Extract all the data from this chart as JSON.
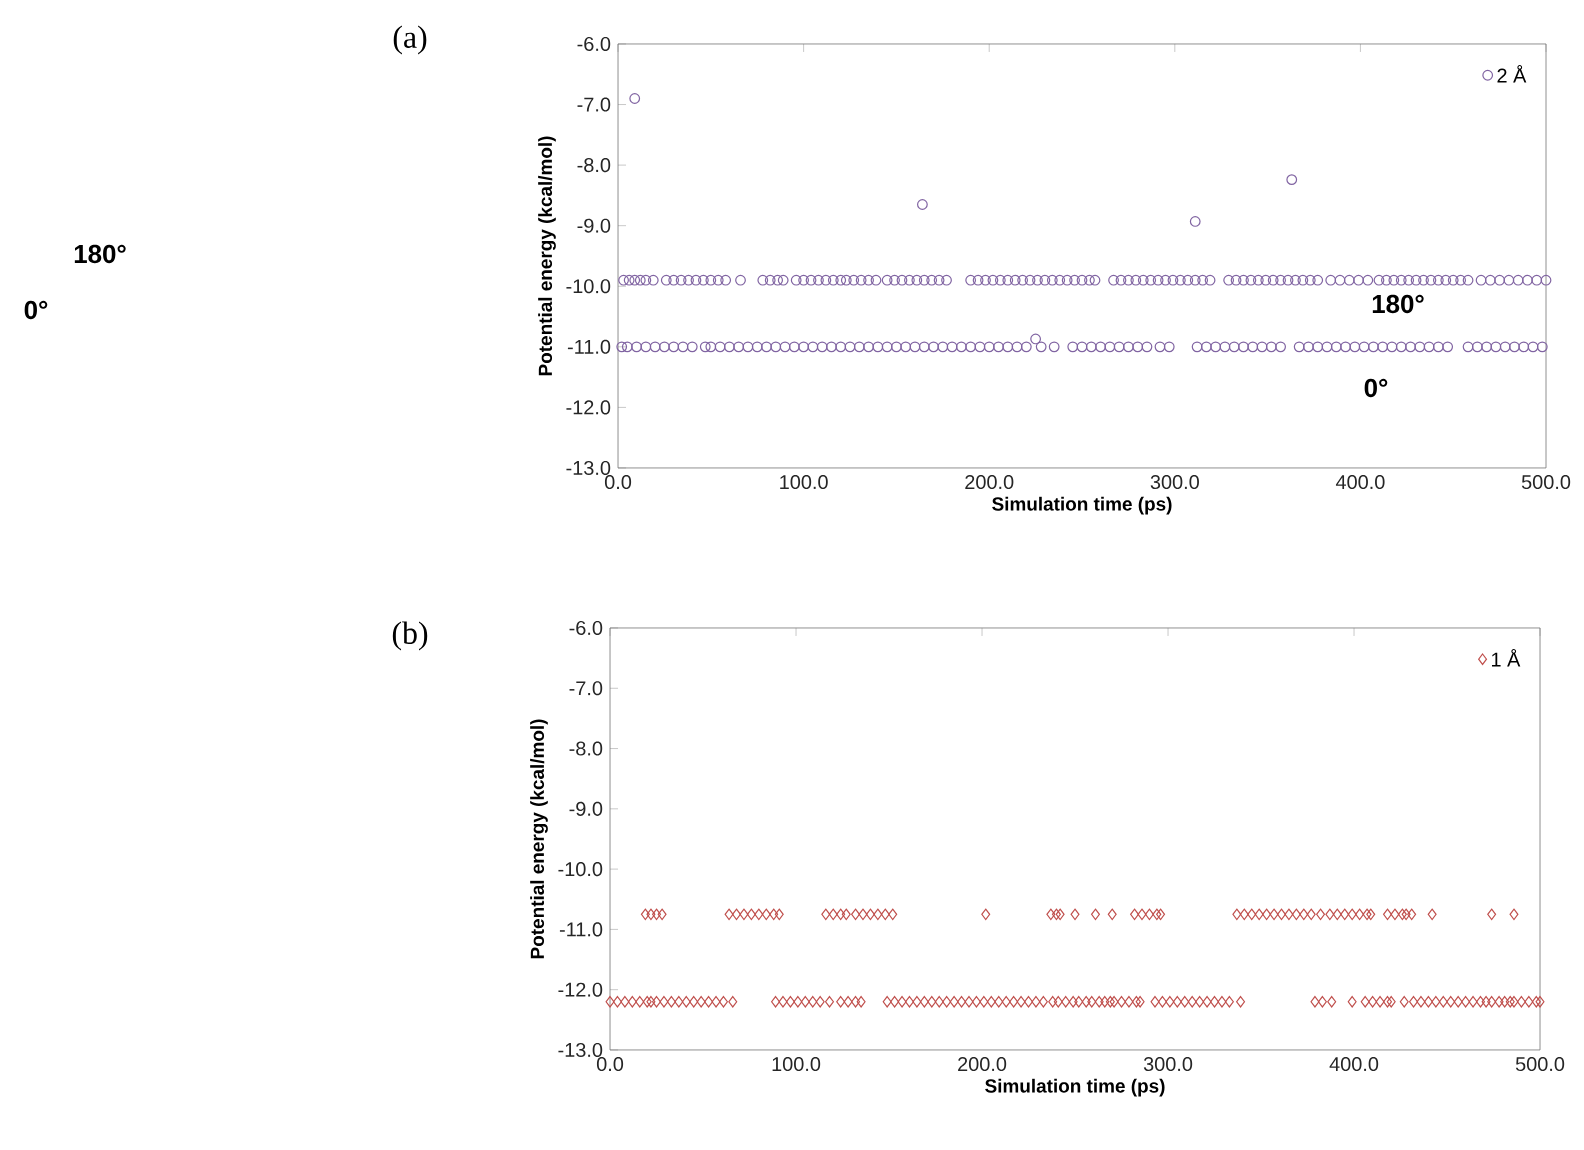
{
  "chart_data": [
    {
      "type": "scatter",
      "title": "(a)",
      "xlabel": "Simulation time (ps)",
      "ylabel": "Potential energy (kcal/mol)",
      "annotations": [
        "180°",
        "0°",
        "180°",
        "0°"
      ],
      "xlim": [
        0,
        500
      ],
      "ylim": [
        -13,
        -6
      ],
      "xticks": [
        {
          "value": 0,
          "label": "0.0"
        },
        {
          "value": 100,
          "label": "100.0"
        },
        {
          "value": 200,
          "label": "200.0"
        },
        {
          "value": 300,
          "label": "300.0"
        },
        {
          "value": 400,
          "label": "400.0"
        },
        {
          "value": 500,
          "label": "500.0"
        }
      ],
      "yticks": [
        {
          "value": -13,
          "label": "-13.0"
        },
        {
          "value": -12,
          "label": "-12.0"
        },
        {
          "value": -11,
          "label": "-11.0"
        },
        {
          "value": -10,
          "label": "-10.0"
        },
        {
          "value": -9,
          "label": "-9.0"
        },
        {
          "value": -8,
          "label": "-8.0"
        },
        {
          "value": -7,
          "label": "-7.0"
        },
        {
          "value": -6,
          "label": "-6.0"
        }
      ],
      "marker": "circle",
      "legend": "top right",
      "grid": false,
      "series": [
        {
          "name": "2 Å",
          "color": "#8064a2",
          "x": [
            9,
            164,
            225,
            311,
            363
          ],
          "values": [
            -6.9,
            -8.65,
            -10.87,
            -8.93,
            -8.24
          ]
        },
        {
          "color": "#8064a2",
          "x": [
            3,
            6,
            9,
            12,
            15,
            19,
            26,
            30,
            34,
            38,
            42,
            46,
            50,
            54,
            58,
            66,
            78,
            82,
            86,
            89,
            96,
            100,
            104,
            108,
            112,
            116,
            120,
            123,
            127,
            131,
            135,
            139,
            145,
            149,
            153,
            157,
            161,
            165,
            169,
            173,
            177,
            190,
            194,
            198,
            202,
            206,
            210,
            214,
            218,
            222,
            226,
            230,
            234,
            238,
            242,
            246,
            250,
            254,
            257,
            267,
            271,
            275,
            279,
            283,
            287,
            291,
            295,
            299,
            303,
            307,
            311,
            315,
            319,
            329,
            333,
            337,
            341,
            345,
            349,
            353,
            357,
            361,
            365,
            369,
            373,
            377,
            384,
            389,
            394,
            399,
            404,
            410,
            414,
            418,
            422,
            426,
            430,
            434,
            438,
            442,
            446,
            450,
            454,
            458,
            465,
            470,
            475,
            480,
            485,
            490,
            495,
            500
          ],
          "values": [
            -9.9,
            -9.9,
            -9.9,
            -9.9,
            -9.9,
            -9.9,
            -9.9,
            -9.9,
            -9.9,
            -9.9,
            -9.9,
            -9.9,
            -9.9,
            -9.9,
            -9.9,
            -9.9,
            -9.9,
            -9.9,
            -9.9,
            -9.9,
            -9.9,
            -9.9,
            -9.9,
            -9.9,
            -9.9,
            -9.9,
            -9.9,
            -9.9,
            -9.9,
            -9.9,
            -9.9,
            -9.9,
            -9.9,
            -9.9,
            -9.9,
            -9.9,
            -9.9,
            -9.9,
            -9.9,
            -9.9,
            -9.9,
            -9.9,
            -9.9,
            -9.9,
            -9.9,
            -9.9,
            -9.9,
            -9.9,
            -9.9,
            -9.9,
            -9.9,
            -9.9,
            -9.9,
            -9.9,
            -9.9,
            -9.9,
            -9.9,
            -9.9,
            -9.9,
            -9.9,
            -9.9,
            -9.9,
            -9.9,
            -9.9,
            -9.9,
            -9.9,
            -9.9,
            -9.9,
            -9.9,
            -9.9,
            -9.9,
            -9.9,
            -9.9,
            -9.9,
            -9.9,
            -9.9,
            -9.9,
            -9.9,
            -9.9,
            -9.9,
            -9.9,
            -9.9,
            -9.9,
            -9.9,
            -9.9,
            -9.9,
            -9.9,
            -9.9,
            -9.9,
            -9.9,
            -9.9,
            -9.9,
            -9.9,
            -9.9,
            -9.9,
            -9.9,
            -9.9,
            -9.9,
            -9.9,
            -9.9,
            -9.9,
            -9.9,
            -9.9,
            -9.9,
            -9.9,
            -9.9,
            -9.9,
            -9.9,
            -9.9,
            -9.9,
            -9.9,
            -9.9
          ]
        },
        {
          "color": "#8064a2",
          "x": [
            2,
            5,
            10,
            15,
            20,
            25,
            30,
            35,
            40,
            47,
            50,
            55,
            60,
            65,
            70,
            75,
            80,
            85,
            90,
            95,
            100,
            105,
            110,
            115,
            120,
            125,
            130,
            135,
            140,
            145,
            150,
            155,
            160,
            165,
            170,
            175,
            180,
            185,
            190,
            195,
            200,
            205,
            210,
            215,
            220,
            228,
            235,
            245,
            250,
            255,
            260,
            265,
            270,
            275,
            280,
            285,
            292,
            297,
            312,
            317,
            322,
            327,
            332,
            337,
            342,
            347,
            352,
            357,
            367,
            372,
            377,
            382,
            387,
            392,
            397,
            402,
            407,
            412,
            417,
            422,
            427,
            432,
            437,
            442,
            447,
            458,
            463,
            468,
            473,
            478,
            483,
            488,
            493,
            498
          ],
          "values": [
            -11.0,
            -11.0,
            -11.0,
            -11.0,
            -11.0,
            -11.0,
            -11.0,
            -11.0,
            -11.0,
            -11.0,
            -11.0,
            -11.0,
            -11.0,
            -11.0,
            -11.0,
            -11.0,
            -11.0,
            -11.0,
            -11.0,
            -11.0,
            -11.0,
            -11.0,
            -11.0,
            -11.0,
            -11.0,
            -11.0,
            -11.0,
            -11.0,
            -11.0,
            -11.0,
            -11.0,
            -11.0,
            -11.0,
            -11.0,
            -11.0,
            -11.0,
            -11.0,
            -11.0,
            -11.0,
            -11.0,
            -11.0,
            -11.0,
            -11.0,
            -11.0,
            -11.0,
            -11.0,
            -11.0,
            -11.0,
            -11.0,
            -11.0,
            -11.0,
            -11.0,
            -11.0,
            -11.0,
            -11.0,
            -11.0,
            -11.0,
            -11.0,
            -11.0,
            -11.0,
            -11.0,
            -11.0,
            -11.0,
            -11.0,
            -11.0,
            -11.0,
            -11.0,
            -11.0,
            -11.0,
            -11.0,
            -11.0,
            -11.0,
            -11.0,
            -11.0,
            -11.0,
            -11.0,
            -11.0,
            -11.0,
            -11.0,
            -11.0,
            -11.0,
            -11.0,
            -11.0,
            -11.0,
            -11.0,
            -11.0,
            -11.0,
            -11.0,
            -11.0,
            -11.0,
            -11.0,
            -11.0,
            -11.0,
            -11.0
          ]
        }
      ]
    },
    {
      "type": "scatter",
      "title": "(b)",
      "xlabel": "Simulation time (ps)",
      "ylabel": "Potential energy (kcal/mol)",
      "xlim": [
        0,
        500
      ],
      "ylim": [
        -13,
        -6
      ],
      "xticks": [
        {
          "value": 0,
          "label": "0.0"
        },
        {
          "value": 100,
          "label": "100.0"
        },
        {
          "value": 200,
          "label": "200.0"
        },
        {
          "value": 300,
          "label": "300.0"
        },
        {
          "value": 400,
          "label": "400.0"
        },
        {
          "value": 500,
          "label": "500.0"
        }
      ],
      "yticks": [
        {
          "value": -13,
          "label": "-13.0"
        },
        {
          "value": -12,
          "label": "-12.0"
        },
        {
          "value": -11,
          "label": "-11.0"
        },
        {
          "value": -10,
          "label": "-10.0"
        },
        {
          "value": -9,
          "label": "-9.0"
        },
        {
          "value": -8,
          "label": "-8.0"
        },
        {
          "value": -7,
          "label": "-7.0"
        },
        {
          "value": -6,
          "label": "-6.0"
        }
      ],
      "marker": "diamond",
      "legend": "top right",
      "grid": false,
      "series": [
        {
          "name": "1 Å",
          "color": "#c0504d",
          "x": [
            19,
            22,
            25,
            28,
            64,
            68,
            72,
            76,
            80,
            84,
            88,
            91,
            116,
            120,
            124,
            127,
            132,
            136,
            140,
            144,
            148,
            152,
            202,
            237,
            240,
            242,
            250,
            261,
            270,
            282,
            286,
            290,
            294,
            296,
            337,
            341,
            345,
            349,
            353,
            357,
            361,
            365,
            369,
            373,
            377,
            382,
            387,
            391,
            395,
            399,
            403,
            407,
            409,
            418,
            422,
            426,
            428,
            431,
            442,
            474,
            486
          ],
          "values": [
            -10.75,
            -10.75,
            -10.75,
            -10.75,
            -10.75,
            -10.75,
            -10.75,
            -10.75,
            -10.75,
            -10.75,
            -10.75,
            -10.75,
            -10.75,
            -10.75,
            -10.75,
            -10.75,
            -10.75,
            -10.75,
            -10.75,
            -10.75,
            -10.75,
            -10.75,
            -10.75,
            -10.75,
            -10.75,
            -10.75,
            -10.75,
            -10.75,
            -10.75,
            -10.75,
            -10.75,
            -10.75,
            -10.75,
            -10.75,
            -10.75,
            -10.75,
            -10.75,
            -10.75,
            -10.75,
            -10.75,
            -10.75,
            -10.75,
            -10.75,
            -10.75,
            -10.75,
            -10.75,
            -10.75,
            -10.75,
            -10.75,
            -10.75,
            -10.75,
            -10.75,
            -10.75,
            -10.75,
            -10.75,
            -10.75,
            -10.75,
            -10.75,
            -10.75,
            -10.75,
            -10.75
          ]
        },
        {
          "color": "#c0504d",
          "x": [
            0,
            4,
            8,
            12,
            16,
            20,
            22,
            25,
            29,
            33,
            37,
            41,
            45,
            49,
            53,
            57,
            61,
            66,
            89,
            93,
            97,
            101,
            105,
            109,
            113,
            118,
            124,
            128,
            132,
            135,
            149,
            153,
            157,
            161,
            165,
            169,
            173,
            177,
            181,
            185,
            189,
            193,
            197,
            201,
            205,
            209,
            213,
            217,
            221,
            225,
            229,
            233,
            238,
            241,
            245,
            249,
            252,
            256,
            259,
            263,
            266,
            269,
            271,
            275,
            279,
            283,
            285,
            293,
            297,
            301,
            305,
            309,
            313,
            317,
            321,
            325,
            329,
            333,
            339,
            379,
            383,
            388,
            399,
            406,
            410,
            414,
            418,
            420,
            427,
            432,
            436,
            440,
            444,
            448,
            452,
            456,
            460,
            464,
            468,
            471,
            474,
            478,
            481,
            484,
            486,
            490,
            494,
            498,
            500
          ],
          "values": [
            -12.2,
            -12.2,
            -12.2,
            -12.2,
            -12.2,
            -12.2,
            -12.2,
            -12.2,
            -12.2,
            -12.2,
            -12.2,
            -12.2,
            -12.2,
            -12.2,
            -12.2,
            -12.2,
            -12.2,
            -12.2,
            -12.2,
            -12.2,
            -12.2,
            -12.2,
            -12.2,
            -12.2,
            -12.2,
            -12.2,
            -12.2,
            -12.2,
            -12.2,
            -12.2,
            -12.2,
            -12.2,
            -12.2,
            -12.2,
            -12.2,
            -12.2,
            -12.2,
            -12.2,
            -12.2,
            -12.2,
            -12.2,
            -12.2,
            -12.2,
            -12.2,
            -12.2,
            -12.2,
            -12.2,
            -12.2,
            -12.2,
            -12.2,
            -12.2,
            -12.2,
            -12.2,
            -12.2,
            -12.2,
            -12.2,
            -12.2,
            -12.2,
            -12.2,
            -12.2,
            -12.2,
            -12.2,
            -12.2,
            -12.2,
            -12.2,
            -12.2,
            -12.2,
            -12.2,
            -12.2,
            -12.2,
            -12.2,
            -12.2,
            -12.2,
            -12.2,
            -12.2,
            -12.2,
            -12.2,
            -12.2,
            -12.2,
            -12.2,
            -12.2,
            -12.2,
            -12.2,
            -12.2,
            -12.2,
            -12.2,
            -12.2,
            -12.2,
            -12.2,
            -12.2,
            -12.2,
            -12.2,
            -12.2,
            -12.2,
            -12.2,
            -12.2,
            -12.2,
            -12.2,
            -12.2,
            -12.2,
            -12.2,
            -12.2,
            -12.2,
            -12.2,
            -12.2,
            -12.2,
            -12.2,
            -12.2,
            -12.2
          ]
        }
      ]
    }
  ]
}
